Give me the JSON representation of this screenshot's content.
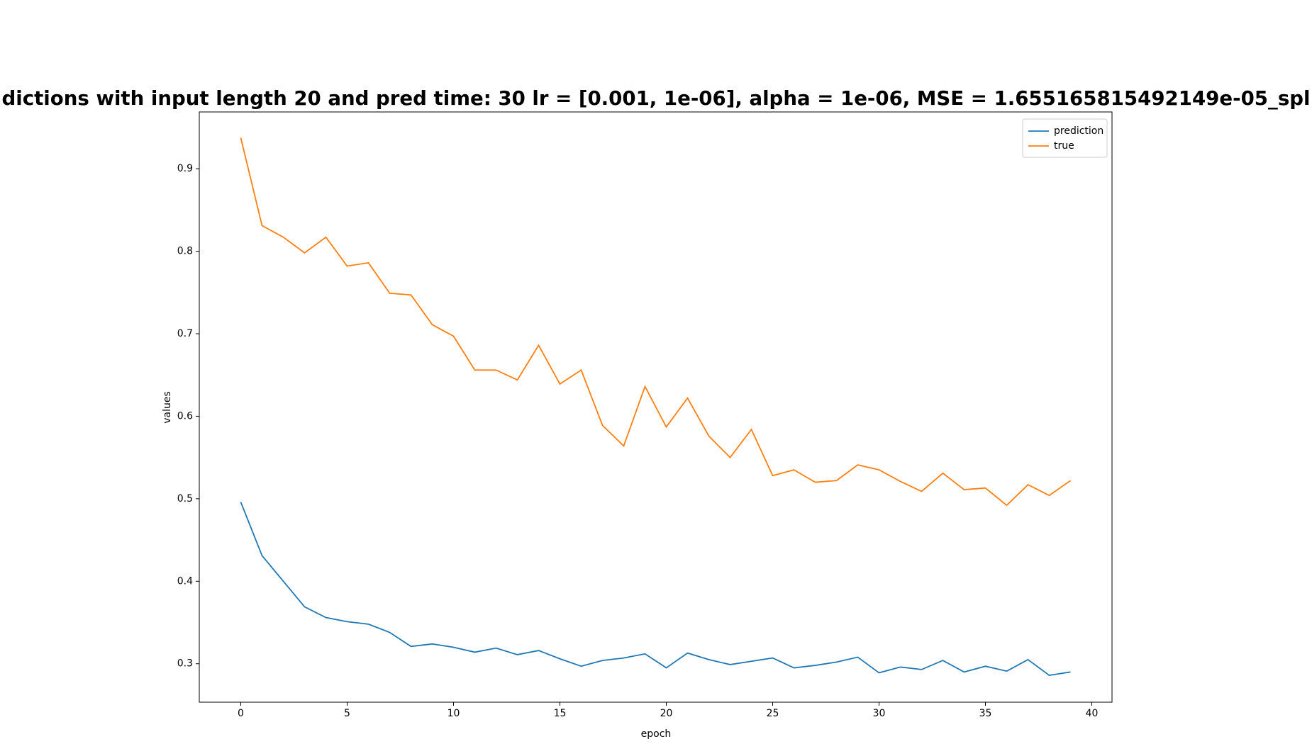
{
  "chart_data": {
    "type": "line",
    "title": "dictions with input length 20 and pred time: 30 lr = [0.001, 1e-06], alpha = 1e-06, MSE = 1.655165815492149e-05_spl",
    "x_label": "epoch",
    "y_label": "values",
    "x": [
      0,
      1,
      2,
      3,
      4,
      5,
      6,
      7,
      8,
      9,
      10,
      11,
      12,
      13,
      14,
      15,
      16,
      17,
      18,
      19,
      20,
      21,
      22,
      23,
      24,
      25,
      26,
      27,
      28,
      29,
      30,
      31,
      32,
      33,
      34,
      35,
      36,
      37,
      38,
      39
    ],
    "series": [
      {
        "name": "prediction",
        "color": "#1f77b4",
        "values": [
          0.496,
          0.431,
          0.4,
          0.369,
          0.356,
          0.351,
          0.348,
          0.338,
          0.321,
          0.324,
          0.32,
          0.314,
          0.319,
          0.311,
          0.316,
          0.306,
          0.297,
          0.304,
          0.307,
          0.312,
          0.295,
          0.313,
          0.305,
          0.299,
          0.303,
          0.307,
          0.295,
          0.298,
          0.302,
          0.308,
          0.289,
          0.296,
          0.293,
          0.304,
          0.29,
          0.297,
          0.291,
          0.305,
          0.286,
          0.29
        ]
      },
      {
        "name": "true",
        "color": "#ff7f0e",
        "values": [
          0.9375,
          0.831,
          0.817,
          0.798,
          0.817,
          0.782,
          0.786,
          0.749,
          0.747,
          0.711,
          0.697,
          0.656,
          0.656,
          0.644,
          0.686,
          0.639,
          0.656,
          0.589,
          0.564,
          0.636,
          0.587,
          0.622,
          0.576,
          0.55,
          0.584,
          0.528,
          0.535,
          0.52,
          0.522,
          0.541,
          0.535,
          0.521,
          0.509,
          0.531,
          0.511,
          0.513,
          0.492,
          0.517,
          0.504,
          0.522
        ]
      }
    ],
    "xlim": [
      -1.95,
      40.95
    ],
    "xticks": [
      0,
      5,
      10,
      15,
      20,
      25,
      30,
      35,
      40
    ],
    "ylim": [
      0.2534,
      0.9688
    ],
    "yticks": [
      0.3,
      0.4,
      0.5,
      0.6,
      0.7,
      0.8,
      0.9
    ],
    "grid": false,
    "legend": "upper right"
  }
}
